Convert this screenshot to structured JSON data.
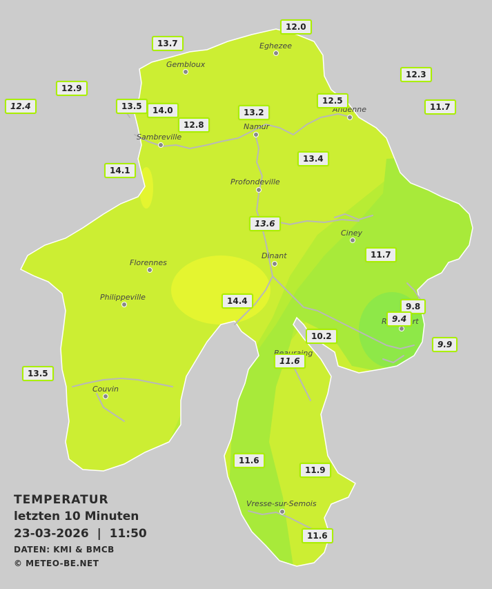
{
  "legend": {
    "title": "TEMPERATUR",
    "subtitle": "letzten 10 Minuten",
    "datetime": "23-03-2026  |  11:50",
    "source": "DATEN: KMI & BMCB",
    "copyright": "© METEO-BE.NET"
  },
  "colors": {
    "background": "#cccccc",
    "region_base": "#ccee33",
    "warm_zone": "#e4f530",
    "cool_zone": "#a8ea3a",
    "coldest_zone": "#88e84a",
    "rivers": "#b8b8b8"
  },
  "cities": [
    {
      "name": "Eghezee"
    },
    {
      "name": "Gembloux"
    },
    {
      "name": "Andenne"
    },
    {
      "name": "Namur"
    },
    {
      "name": "Sambreville"
    },
    {
      "name": "Profondeville"
    },
    {
      "name": "Ciney"
    },
    {
      "name": "Dinant"
    },
    {
      "name": "Florennes"
    },
    {
      "name": "Philippeville"
    },
    {
      "name": "Rochefort"
    },
    {
      "name": "Beauraing"
    },
    {
      "name": "Couvin"
    },
    {
      "name": "Vresse-sur-Semois"
    }
  ],
  "stations": [
    {
      "value": "12.0",
      "style": "normal"
    },
    {
      "value": "13.7",
      "style": "normal"
    },
    {
      "value": "12.3",
      "style": "normal"
    },
    {
      "value": "12.9",
      "style": "normal"
    },
    {
      "value": "12.4",
      "style": "italic"
    },
    {
      "value": "13.5",
      "style": "normal"
    },
    {
      "value": "14.0",
      "style": "normal"
    },
    {
      "value": "13.2",
      "style": "normal"
    },
    {
      "value": "12.5",
      "style": "normal"
    },
    {
      "value": "11.7",
      "style": "normal"
    },
    {
      "value": "12.8",
      "style": "normal"
    },
    {
      "value": "14.1",
      "style": "normal"
    },
    {
      "value": "13.4",
      "style": "normal"
    },
    {
      "value": "13.6",
      "style": "italic"
    },
    {
      "value": "11.7",
      "style": "normal"
    },
    {
      "value": "14.4",
      "style": "normal"
    },
    {
      "value": "9.8",
      "style": "normal"
    },
    {
      "value": "9.4",
      "style": "italic"
    },
    {
      "value": "10.2",
      "style": "normal"
    },
    {
      "value": "9.9",
      "style": "italic"
    },
    {
      "value": "11.6",
      "style": "italic"
    },
    {
      "value": "13.5",
      "style": "normal"
    },
    {
      "value": "11.6",
      "style": "normal"
    },
    {
      "value": "11.9",
      "style": "normal"
    },
    {
      "value": "11.6",
      "style": "normal"
    }
  ]
}
